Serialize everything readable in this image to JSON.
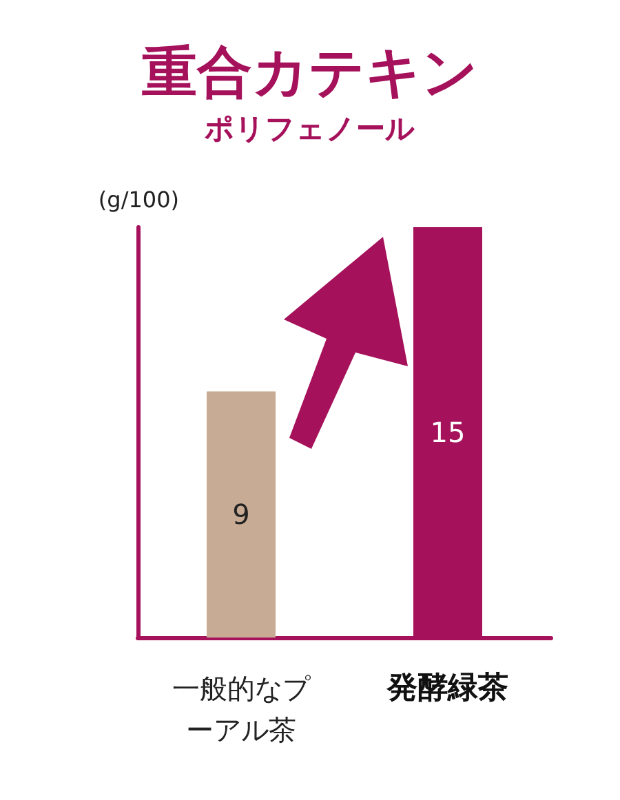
{
  "chart_data": {
    "type": "bar",
    "title": "重合カテキン",
    "subtitle": "ポリフェノール",
    "ylabel": "(g/100)",
    "categories": [
      "一般的なプーアル茶",
      "発酵緑茶"
    ],
    "values": [
      9,
      15
    ],
    "colors": [
      "#c8ab94",
      "#a5115a"
    ],
    "data_labels": true
  }
}
